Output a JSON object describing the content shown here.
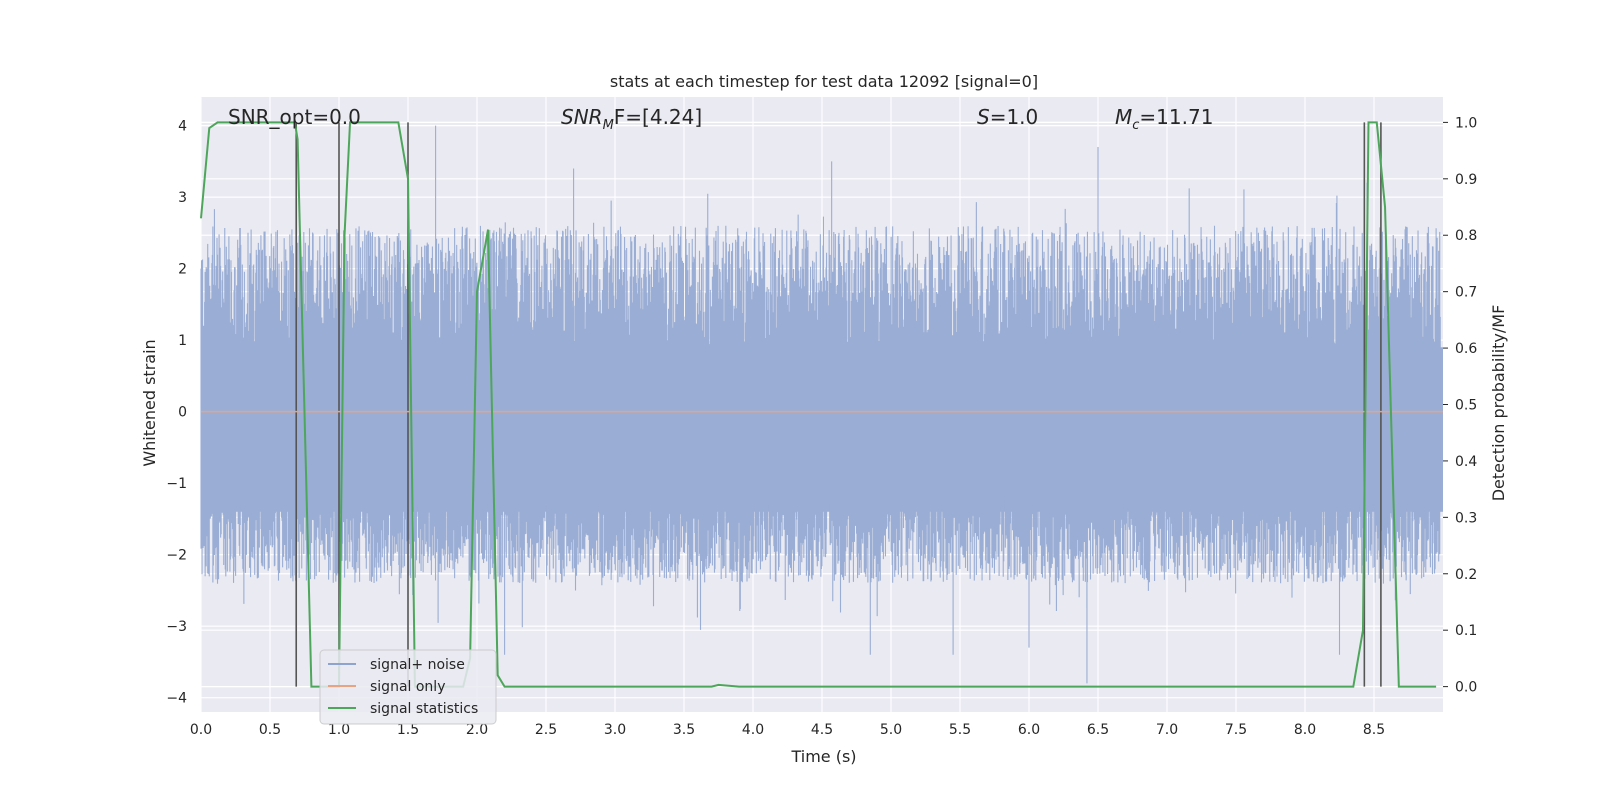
{
  "chart_data": {
    "type": "line",
    "title": "stats at each timestep for test data 12092 [signal=0]",
    "xlabel": "Time (s)",
    "ylabel_left": "Whitened strain",
    "ylabel_right": "Detection probability/MF",
    "xlim": [
      0.0,
      9.0
    ],
    "ylim_left": [
      -4.2,
      4.4
    ],
    "ylim_right": [
      -0.045,
      1.045
    ],
    "x_ticks": [
      "0.0",
      "0.5",
      "1.0",
      "1.5",
      "2.0",
      "2.5",
      "3.0",
      "3.5",
      "4.0",
      "4.5",
      "5.0",
      "5.5",
      "6.0",
      "6.5",
      "7.0",
      "7.5",
      "8.0",
      "8.5"
    ],
    "y_ticks_left": [
      "4",
      "3",
      "2",
      "1",
      "0",
      "−1",
      "−2",
      "−3",
      "−4"
    ],
    "y_ticks_right": [
      "1.0",
      "0.9",
      "0.8",
      "0.7",
      "0.6",
      "0.5",
      "0.4",
      "0.3",
      "0.2",
      "0.1",
      "0.0"
    ],
    "grid": true,
    "annotations": {
      "snr_opt": "SNR_opt=0.0",
      "snr_mf_prefix": "SNR",
      "snr_mf_sub": "M",
      "snr_mf_suffix": "F=[4.24]",
      "s_prefix": "S",
      "s_suffix": "=1.0",
      "mc_prefix": "M",
      "mc_sub": "c",
      "mc_suffix": "=11.71"
    },
    "legend": {
      "placement": "lower-left",
      "entries": [
        {
          "label": "signal+ noise",
          "color": "#8ea4cf"
        },
        {
          "label": "signal only",
          "color": "#e8a381"
        },
        {
          "label": "signal statistics",
          "color": "#4ea65a"
        }
      ]
    },
    "series": [
      {
        "name": "signal+ noise",
        "axis": "left",
        "color": "#9aadd4",
        "description_values": {
          "t_range": [
            0.0,
            8.98
          ],
          "typical_envelope": [
            -1.5,
            2.6
          ],
          "peaks": [
            [
              1.7,
              4.0
            ],
            [
              4.57,
              3.5
            ],
            [
              6.5,
              3.7
            ],
            [
              2.7,
              3.4
            ],
            [
              8.45,
              3.2
            ]
          ],
          "troughs": [
            [
              2.2,
              -3.4
            ],
            [
              4.85,
              -3.4
            ],
            [
              5.45,
              -3.4
            ],
            [
              6.0,
              -3.3
            ],
            [
              6.42,
              -3.8
            ],
            [
              8.25,
              -3.4
            ]
          ]
        }
      },
      {
        "name": "signal only",
        "axis": "left",
        "color": "#e8a381",
        "x": [
          0.0,
          9.0
        ],
        "y": [
          0.0,
          0.0
        ]
      },
      {
        "name": "signal statistics",
        "axis": "right",
        "color": "#4ea65a",
        "x": [
          0.0,
          0.06,
          0.12,
          0.68,
          0.7,
          0.8,
          0.9,
          1.0,
          1.04,
          1.08,
          1.43,
          1.5,
          1.55,
          1.6,
          1.9,
          1.95,
          2.0,
          2.08,
          2.15,
          2.2,
          3.7,
          3.75,
          3.9,
          8.35,
          8.42,
          8.46,
          8.52,
          8.58,
          8.68,
          8.8,
          8.95
        ],
        "y": [
          0.83,
          0.99,
          1.0,
          1.0,
          0.97,
          0.0,
          0.0,
          0.0,
          0.8,
          1.0,
          1.0,
          0.9,
          0.0,
          0.0,
          0.0,
          0.05,
          0.7,
          0.81,
          0.02,
          0.0,
          0.0,
          0.003,
          0.0,
          0.0,
          0.1,
          1.0,
          1.0,
          0.85,
          0.0,
          0.0,
          0.0
        ]
      }
    ],
    "vertical_markers": {
      "color": "#555555",
      "x": [
        0.69,
        1.0,
        1.5,
        8.43,
        8.55
      ]
    }
  }
}
